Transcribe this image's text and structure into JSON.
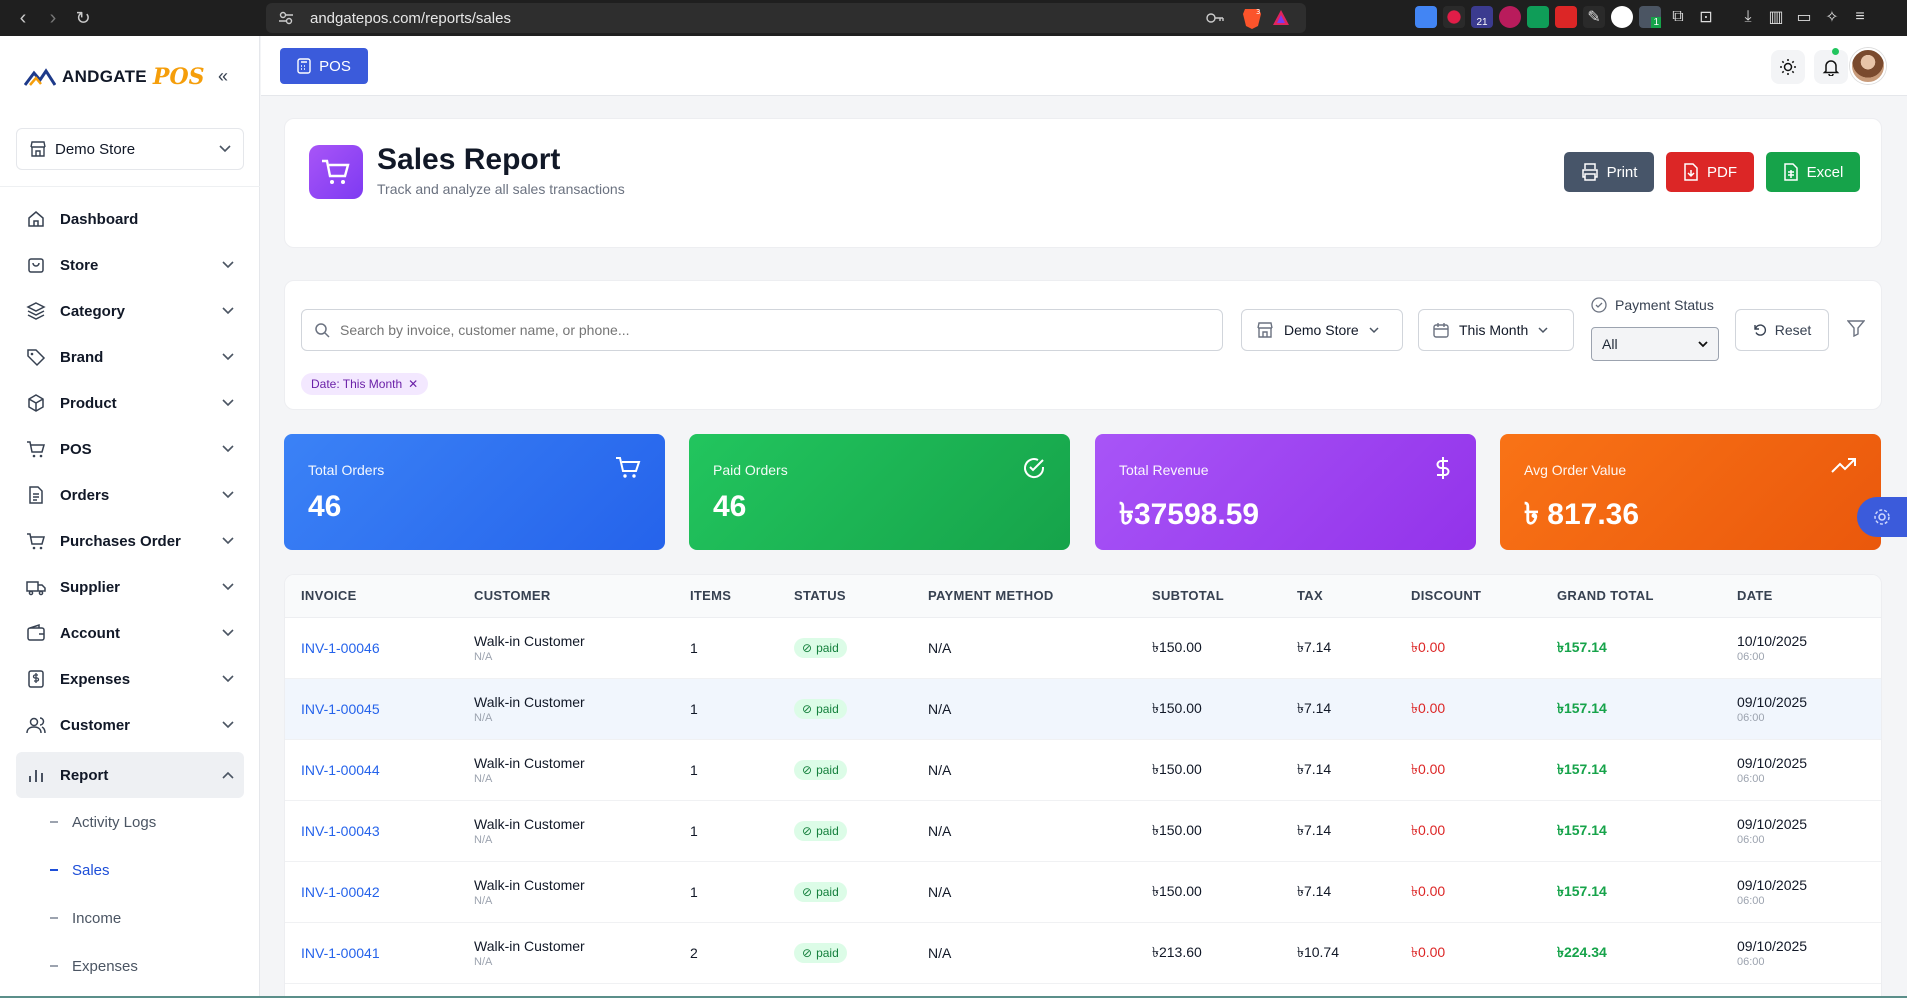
{
  "browser": {
    "url": "andgatepos.com/reports/sales",
    "ext_badge_1": "21",
    "ext_badge_2": "1",
    "brave_count": "3"
  },
  "sidebar": {
    "logo_text": "ANDGATE",
    "logo_accent": "POS",
    "store": "Demo Store",
    "items": [
      {
        "label": "Dashboard",
        "icon": "home-icon",
        "expandable": false
      },
      {
        "label": "Store",
        "icon": "store-bag-icon",
        "expandable": true
      },
      {
        "label": "Category",
        "icon": "layers-icon",
        "expandable": true
      },
      {
        "label": "Brand",
        "icon": "tag-icon",
        "expandable": true
      },
      {
        "label": "Product",
        "icon": "box-icon",
        "expandable": true
      },
      {
        "label": "POS",
        "icon": "cart-icon",
        "expandable": true
      },
      {
        "label": "Orders",
        "icon": "file-icon",
        "expandable": true
      },
      {
        "label": "Purchases Order",
        "icon": "cart-icon",
        "expandable": true
      },
      {
        "label": "Supplier",
        "icon": "truck-icon",
        "expandable": true
      },
      {
        "label": "Account",
        "icon": "wallet-icon",
        "expandable": true
      },
      {
        "label": "Expenses",
        "icon": "dollar-doc-icon",
        "expandable": true
      },
      {
        "label": "Customer",
        "icon": "users-icon",
        "expandable": true
      },
      {
        "label": "Report",
        "icon": "bar-chart-icon",
        "expandable": true
      }
    ],
    "report_sub": [
      "Activity Logs",
      "Sales",
      "Income",
      "Expenses"
    ]
  },
  "topbar": {
    "pos_label": "POS"
  },
  "header": {
    "title": "Sales Report",
    "subtitle": "Track and analyze all sales transactions",
    "print_label": "Print",
    "pdf_label": "PDF",
    "excel_label": "Excel",
    "colors": {
      "print": "#475569",
      "pdf": "#dc2626",
      "excel": "#16a34a"
    }
  },
  "filters": {
    "search_placeholder": "Search by invoice, customer name, or phone...",
    "store": "Demo Store",
    "period": "This Month",
    "payment_status_label": "Payment Status",
    "payment_status_value": "All",
    "reset_label": "Reset",
    "chip": "Date: This Month"
  },
  "stats": [
    {
      "label": "Total Orders",
      "value": "46",
      "icon": "cart-icon",
      "color": "#2f6ef0"
    },
    {
      "label": "Paid Orders",
      "value": "46",
      "icon": "check-circle-icon",
      "color": "#17a84a"
    },
    {
      "label": "Total Revenue",
      "value": "৳37598.59",
      "icon": "dollar-icon",
      "color": "#9333ea"
    },
    {
      "label": "Avg Order Value",
      "value": "৳ 817.36",
      "icon": "trend-up-icon",
      "color": "#f26b0f"
    }
  ],
  "table": {
    "headers": [
      "INVOICE",
      "CUSTOMER",
      "ITEMS",
      "STATUS",
      "PAYMENT METHOD",
      "SUBTOTAL",
      "TAX",
      "DISCOUNT",
      "GRAND TOTAL",
      "DATE"
    ],
    "rows": [
      {
        "invoice": "INV-1-00046",
        "customer": "Walk-in Customer",
        "customer_sub": "N/A",
        "items": "1",
        "status": "paid",
        "method": "N/A",
        "subtotal": "৳150.00",
        "tax": "৳7.14",
        "discount": "৳0.00",
        "grand": "৳157.14",
        "date": "10/10/2025",
        "time": "06:00"
      },
      {
        "invoice": "INV-1-00045",
        "customer": "Walk-in Customer",
        "customer_sub": "N/A",
        "items": "1",
        "status": "paid",
        "method": "N/A",
        "subtotal": "৳150.00",
        "tax": "৳7.14",
        "discount": "৳0.00",
        "grand": "৳157.14",
        "date": "09/10/2025",
        "time": "06:00"
      },
      {
        "invoice": "INV-1-00044",
        "customer": "Walk-in Customer",
        "customer_sub": "N/A",
        "items": "1",
        "status": "paid",
        "method": "N/A",
        "subtotal": "৳150.00",
        "tax": "৳7.14",
        "discount": "৳0.00",
        "grand": "৳157.14",
        "date": "09/10/2025",
        "time": "06:00"
      },
      {
        "invoice": "INV-1-00043",
        "customer": "Walk-in Customer",
        "customer_sub": "N/A",
        "items": "1",
        "status": "paid",
        "method": "N/A",
        "subtotal": "৳150.00",
        "tax": "৳7.14",
        "discount": "৳0.00",
        "grand": "৳157.14",
        "date": "09/10/2025",
        "time": "06:00"
      },
      {
        "invoice": "INV-1-00042",
        "customer": "Walk-in Customer",
        "customer_sub": "N/A",
        "items": "1",
        "status": "paid",
        "method": "N/A",
        "subtotal": "৳150.00",
        "tax": "৳7.14",
        "discount": "৳0.00",
        "grand": "৳157.14",
        "date": "09/10/2025",
        "time": "06:00"
      },
      {
        "invoice": "INV-1-00041",
        "customer": "Walk-in Customer",
        "customer_sub": "N/A",
        "items": "2",
        "status": "paid",
        "method": "N/A",
        "subtotal": "৳213.60",
        "tax": "৳10.74",
        "discount": "৳0.00",
        "grand": "৳224.34",
        "date": "09/10/2025",
        "time": "06:00"
      }
    ]
  }
}
